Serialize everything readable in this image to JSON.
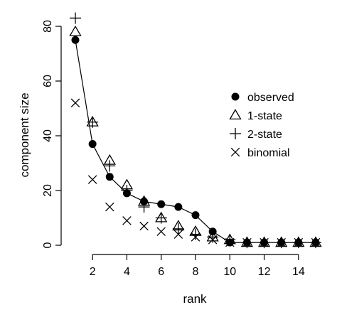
{
  "chart_data": {
    "type": "scatter",
    "xlabel": "rank",
    "ylabel": "component size",
    "xlim": [
      1,
      15
    ],
    "ylim": [
      0,
      80
    ],
    "xticks": [
      2,
      4,
      6,
      8,
      10,
      12,
      14
    ],
    "yticks": [
      0,
      20,
      40,
      60,
      80
    ],
    "grid": false,
    "legend_position": "right",
    "x": [
      1,
      2,
      3,
      4,
      5,
      6,
      7,
      8,
      9,
      10,
      11,
      12,
      13,
      14,
      15
    ],
    "series": [
      {
        "name": "observed",
        "marker": "filled-circle",
        "line": true,
        "values": [
          75,
          37,
          25,
          19,
          16,
          15,
          14,
          11,
          5,
          1,
          1,
          1,
          1,
          1,
          1
        ]
      },
      {
        "name": "1-state",
        "marker": "open-triangle",
        "line": false,
        "values": [
          78,
          45,
          31,
          22,
          16,
          10,
          7,
          5,
          3,
          2,
          1,
          1,
          1,
          1,
          1
        ]
      },
      {
        "name": "2-state",
        "marker": "plus",
        "line": false,
        "values": [
          83,
          45,
          29,
          20,
          14,
          10,
          6,
          4,
          3,
          2,
          1,
          1,
          1,
          1,
          1
        ]
      },
      {
        "name": "binomial",
        "marker": "cross",
        "line": false,
        "values": [
          52,
          24,
          14,
          9,
          7,
          5,
          4,
          3,
          2,
          1,
          1,
          1,
          1,
          1,
          1
        ]
      }
    ]
  }
}
